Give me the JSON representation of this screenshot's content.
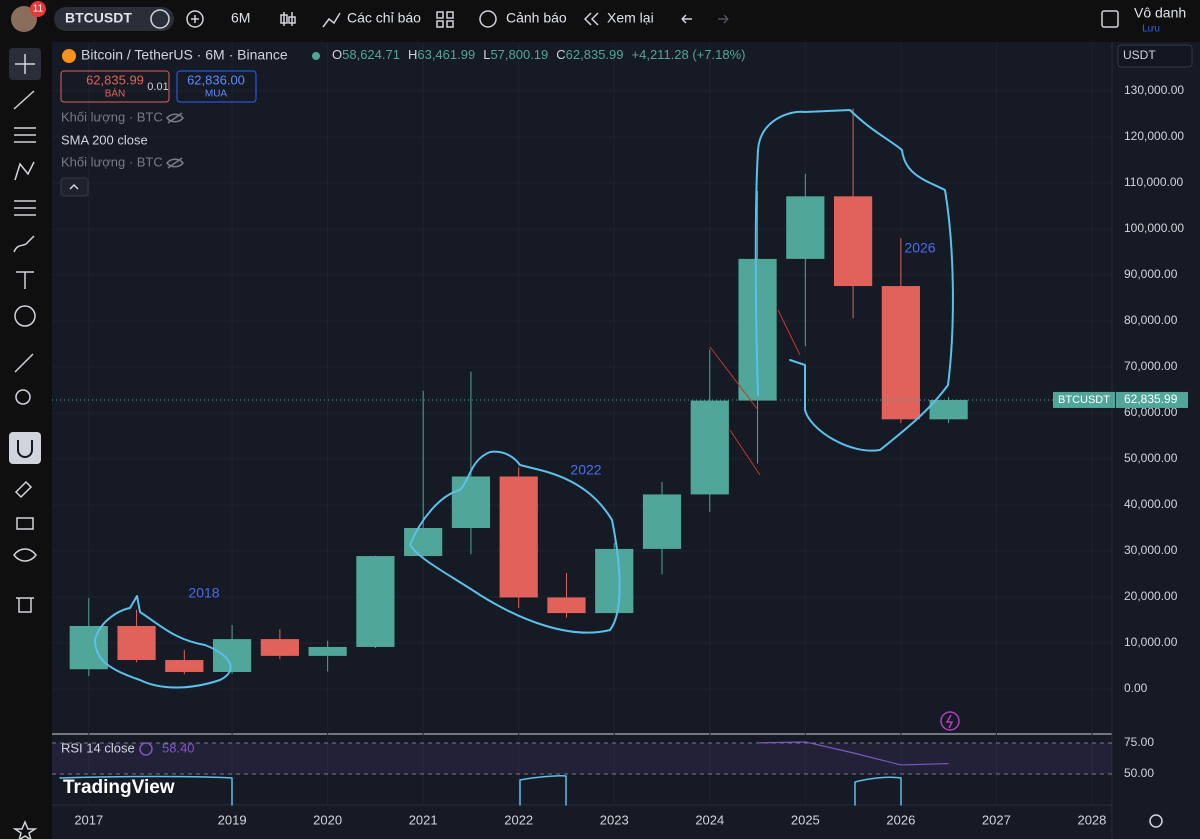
{
  "toolbar": {
    "badge": "11",
    "symbol": "BTCUSDT",
    "interval": "6M",
    "indicators": "Các chỉ báo",
    "alerts": "Cảnh báo",
    "replay": "Xem lại",
    "account": "Vô danh",
    "save": "Lưu"
  },
  "watermark": "TradingView",
  "chart_data": [
    {
      "type": "candlestick",
      "title": "Bitcoin / TetherUS · 6M · Binance",
      "currency": "USDT",
      "legend_ohlc": [
        {
          "key": "O",
          "value": 58624.71,
          "label": "58,624.71"
        },
        {
          "key": "H",
          "value": 63461.99,
          "label": "63,461.99"
        },
        {
          "key": "L",
          "value": 57800.19,
          "label": "57,800.19"
        },
        {
          "key": "C",
          "value": 62835.99,
          "label": "62,835.99"
        }
      ],
      "change": "+4,211.28 (+7.18%)",
      "order_panel": {
        "sell_price": "62,835.99",
        "sell": "BÁN",
        "spread": "0.01",
        "buy_price": "62,836.00",
        "buy": "MUA"
      },
      "indicators": [
        "Khối lượng · BTC",
        "SMA 200 close",
        "Khối lượng · BTC"
      ],
      "annotations": [
        "2018",
        "2022",
        "2026"
      ],
      "x": [
        0,
        1,
        2,
        3,
        4,
        5,
        6,
        7,
        8,
        9,
        10,
        11,
        12,
        13,
        14,
        15,
        16,
        17,
        18
      ],
      "open": [
        4300,
        13700,
        6300,
        3700,
        10850,
        7200,
        9140,
        28900,
        35000,
        46200,
        19900,
        16500,
        30450,
        42300,
        62700,
        93500,
        107100,
        87600,
        58624.71
      ],
      "high": [
        19800,
        17200,
        8500,
        13900,
        13000,
        10500,
        29000,
        64850,
        69000,
        48200,
        25200,
        31800,
        45000,
        73800,
        108300,
        112000,
        126200,
        98000,
        63461.99
      ],
      "low": [
        2800,
        5800,
        3200,
        3350,
        6500,
        3800,
        8900,
        28800,
        29300,
        17600,
        15500,
        16500,
        24900,
        38500,
        49000,
        74500,
        80600,
        57800,
        57800.19
      ],
      "close": [
        13700,
        6300,
        3700,
        10850,
        7200,
        9140,
        28900,
        35000,
        46200,
        19900,
        16500,
        30450,
        42300,
        62700,
        93500,
        107100,
        87600,
        58624.71,
        62835.99
      ],
      "up_color": "#4fa699",
      "down_color": "#e0625a",
      "last_price": {
        "name": "BTCUSDT",
        "value": 62835.99,
        "label": "62,835.99"
      },
      "xlim": [
        -0.77,
        21.42
      ],
      "xticks": [
        {
          "value": 0,
          "label": "2017"
        },
        {
          "value": 3,
          "label": "2019"
        },
        {
          "value": 5,
          "label": "2020"
        },
        {
          "value": 7,
          "label": "2021"
        },
        {
          "value": 9,
          "label": "2022"
        },
        {
          "value": 11,
          "label": "2023"
        },
        {
          "value": 13,
          "label": "2024"
        },
        {
          "value": 15,
          "label": "2025"
        },
        {
          "value": 17,
          "label": "2026"
        },
        {
          "value": 19,
          "label": "2027"
        },
        {
          "value": 21,
          "label": "2028"
        }
      ],
      "ylim": [
        -9565,
        138478
      ],
      "yticks": [
        {
          "value": 0,
          "label": "0.00"
        },
        {
          "value": 10000,
          "label": "10,000.00"
        },
        {
          "value": 20000,
          "label": "20,000.00"
        },
        {
          "value": 30000,
          "label": "30,000.00"
        },
        {
          "value": 40000,
          "label": "40,000.00"
        },
        {
          "value": 50000,
          "label": "50,000.00"
        },
        {
          "value": 60000,
          "label": "60,000.00"
        },
        {
          "value": 70000,
          "label": "70,000.00"
        },
        {
          "value": 80000,
          "label": "80,000.00"
        },
        {
          "value": 90000,
          "label": "90,000.00"
        },
        {
          "value": 100000,
          "label": "100,000.00"
        },
        {
          "value": 110000,
          "label": "110,000.00"
        },
        {
          "value": 120000,
          "label": "120,000.00"
        },
        {
          "value": 130000,
          "label": "130,000.00"
        }
      ],
      "grid": true
    },
    {
      "type": "line",
      "title": "RSI 14 close",
      "color": "#7e57c2",
      "current": {
        "value": 58.4,
        "label": "58.40"
      },
      "x": [
        0,
        1,
        2,
        3,
        4,
        5,
        6,
        7,
        8,
        9,
        10,
        11,
        12,
        13,
        14,
        15,
        16,
        17,
        18
      ],
      "values": [
        null,
        null,
        null,
        null,
        null,
        null,
        null,
        null,
        null,
        null,
        null,
        null,
        null,
        null,
        75.1,
        75.8,
        67.0,
        57.3,
        58.4
      ],
      "xlim": [
        -0.77,
        21.42
      ],
      "ylim": [
        25,
        79.8
      ],
      "yticks": [
        {
          "value": 75,
          "label": "75.00"
        },
        {
          "value": 50,
          "label": "50.00"
        }
      ]
    }
  ]
}
